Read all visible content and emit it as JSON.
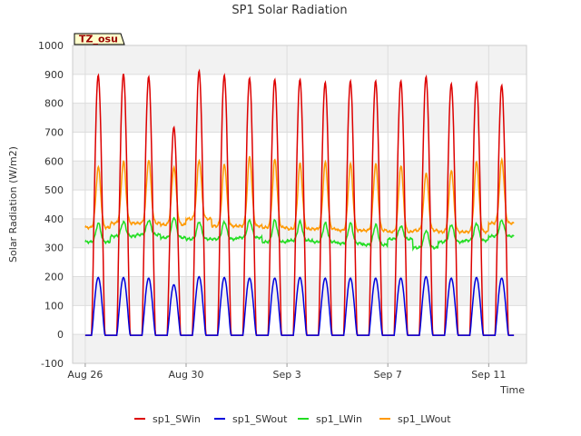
{
  "chart_data": {
    "type": "line",
    "title": "SP1 Solar Radiation",
    "xlabel": "Time",
    "ylabel": "Solar Radiation (W/m2)",
    "badge": "TZ_osu",
    "ylim": [
      -100,
      1000
    ],
    "yticks": [
      -100,
      0,
      100,
      200,
      300,
      400,
      500,
      600,
      700,
      800,
      900,
      1000
    ],
    "xlim_days": [
      -0.5,
      17.5
    ],
    "xticks": [
      {
        "day": 0,
        "label": "Aug 26"
      },
      {
        "day": 4,
        "label": "Aug 30"
      },
      {
        "day": 8,
        "label": "Sep 3"
      },
      {
        "day": 12,
        "label": "Sep 7"
      },
      {
        "day": 16,
        "label": "Sep 11"
      }
    ],
    "grid": true,
    "legend_position": "bottom",
    "series": [
      {
        "name": "sp1_SWin",
        "color": "#dd0000",
        "daily_peaks": [
          900,
          905,
          895,
          720,
          915,
          900,
          890,
          885,
          885,
          875,
          880,
          880,
          880,
          895,
          870,
          875,
          865
        ]
      },
      {
        "name": "sp1_SWout",
        "color": "#0000dd",
        "daily_peaks": [
          200,
          200,
          198,
          175,
          203,
          200,
          198,
          198,
          200,
          198,
          198,
          198,
          198,
          203,
          198,
          200,
          198
        ]
      },
      {
        "name": "sp1_LWin",
        "color": "#22dd22",
        "night_values": [
          320,
          340,
          345,
          335,
          330,
          330,
          335,
          320,
          325,
          320,
          315,
          310,
          330,
          300,
          320,
          325,
          340
        ],
        "day_peaks": [
          385,
          390,
          395,
          405,
          390,
          390,
          395,
          395,
          390,
          385,
          385,
          380,
          375,
          360,
          380,
          385,
          395
        ]
      },
      {
        "name": "sp1_LWout",
        "color": "#ff9900",
        "night_values": [
          370,
          385,
          385,
          380,
          400,
          375,
          375,
          370,
          365,
          365,
          360,
          360,
          355,
          360,
          355,
          355,
          385
        ],
        "day_peaks": [
          580,
          600,
          605,
          580,
          605,
          590,
          615,
          605,
          590,
          595,
          590,
          590,
          585,
          560,
          570,
          600,
          605
        ]
      }
    ]
  }
}
